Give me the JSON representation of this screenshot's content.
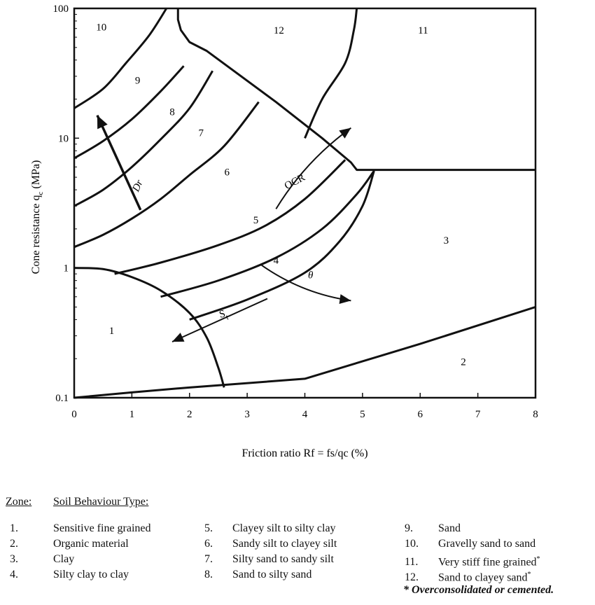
{
  "chart_data": {
    "type": "line",
    "xlabel": "Friction ratio Rf = fs/qc (%)",
    "ylabel_main": "Cone resistance q",
    "ylabel_sub": "c",
    "ylabel_unit": "(MPa)",
    "x_ticks": [
      "0",
      "1",
      "2",
      "3",
      "4",
      "5",
      "6",
      "7",
      "8"
    ],
    "y_ticks": [
      "0.1",
      "1",
      "10",
      "100"
    ],
    "xlim": [
      0,
      8
    ],
    "ylim": [
      0.1,
      100
    ],
    "y_scale": "log",
    "boundaries": [
      {
        "points": [
          [
            0,
            1.0
          ],
          [
            0.5,
            0.98
          ],
          [
            1.0,
            0.85
          ],
          [
            1.5,
            0.67
          ],
          [
            2.0,
            0.45
          ],
          [
            2.3,
            0.29
          ],
          [
            2.5,
            0.17
          ],
          [
            2.6,
            0.12
          ]
        ]
      },
      {
        "points": [
          [
            0,
            0.1
          ],
          [
            1.0,
            0.11
          ],
          [
            2.0,
            0.12
          ],
          [
            4.0,
            0.14
          ],
          [
            6.0,
            0.26
          ],
          [
            8.0,
            0.5
          ]
        ]
      },
      {
        "points": [
          [
            0.7,
            0.9
          ],
          [
            1.5,
            1.1
          ],
          [
            2.5,
            1.5
          ],
          [
            3.3,
            2.1
          ],
          [
            4.0,
            3.4
          ],
          [
            4.7,
            6.8
          ]
        ]
      },
      {
        "points": [
          [
            1.5,
            0.6
          ],
          [
            2.5,
            0.8
          ],
          [
            3.5,
            1.2
          ],
          [
            4.3,
            2.0
          ],
          [
            4.9,
            3.7
          ],
          [
            5.2,
            5.6
          ]
        ]
      },
      {
        "points": [
          [
            2.0,
            0.4
          ],
          [
            3.0,
            0.57
          ],
          [
            4.0,
            0.92
          ],
          [
            4.6,
            1.6
          ],
          [
            5.0,
            3.0
          ],
          [
            5.2,
            5.6
          ]
        ]
      },
      {
        "points": [
          [
            0,
            1.45
          ],
          [
            0.5,
            1.8
          ],
          [
            1.0,
            2.4
          ],
          [
            1.5,
            3.4
          ],
          [
            2.0,
            5.2
          ],
          [
            2.6,
            8.7
          ],
          [
            3.2,
            19
          ]
        ]
      },
      {
        "points": [
          [
            0,
            3.0
          ],
          [
            0.5,
            4.0
          ],
          [
            1.0,
            6.0
          ],
          [
            1.5,
            9.8
          ],
          [
            2.0,
            17
          ],
          [
            2.4,
            33
          ]
        ]
      },
      {
        "points": [
          [
            0,
            7.0
          ],
          [
            0.5,
            9.5
          ],
          [
            1.0,
            14
          ],
          [
            1.5,
            23
          ],
          [
            1.9,
            36
          ]
        ]
      },
      {
        "points": [
          [
            0,
            17
          ],
          [
            0.5,
            24
          ],
          [
            0.9,
            38
          ],
          [
            1.3,
            62
          ],
          [
            1.6,
            100
          ]
        ]
      },
      {
        "points": [
          [
            1.8,
            100
          ],
          [
            1.8,
            82
          ],
          [
            1.85,
            68
          ],
          [
            2.0,
            55
          ],
          [
            2.3,
            47
          ],
          [
            3.5,
            19
          ],
          [
            4.3,
            10
          ],
          [
            4.8,
            6.5
          ],
          [
            4.9,
            5.7
          ],
          [
            8.0,
            5.7
          ]
        ]
      },
      {
        "points": [
          [
            4.0,
            10
          ],
          [
            4.3,
            20
          ],
          [
            4.7,
            38
          ],
          [
            4.85,
            68
          ],
          [
            4.9,
            100
          ]
        ]
      }
    ],
    "zones": [
      {
        "label": "1",
        "x": 0.65,
        "y": 0.33
      },
      {
        "label": "2",
        "x": 6.75,
        "y": 0.19
      },
      {
        "label": "3",
        "x": 6.45,
        "y": 1.64
      },
      {
        "label": "4",
        "x": 3.5,
        "y": 1.15
      },
      {
        "label": "5",
        "x": 3.15,
        "y": 2.35
      },
      {
        "label": "6",
        "x": 2.65,
        "y": 5.5
      },
      {
        "label": "7",
        "x": 2.2,
        "y": 11
      },
      {
        "label": "8",
        "x": 1.7,
        "y": 16
      },
      {
        "label": "9",
        "x": 1.1,
        "y": 28
      },
      {
        "label": "10",
        "x": 0.47,
        "y": 72
      },
      {
        "label": "11",
        "x": 6.05,
        "y": 68
      },
      {
        "label": "12",
        "x": 3.55,
        "y": 68
      }
    ],
    "annotations": [
      {
        "label": "Dr",
        "x": 1.15,
        "y": 4.2,
        "rotate": -65,
        "italic": true
      },
      {
        "label": "OCR",
        "x": 3.85,
        "y": 4.4,
        "rotate": -28,
        "italic": false
      },
      {
        "label": "θ",
        "x": 4.1,
        "y": 0.83,
        "rotate": 0,
        "italic": true
      },
      {
        "label": "S",
        "label_sub": "t",
        "x": 2.6,
        "y": 0.42,
        "rotate": -15,
        "italic": false
      }
    ],
    "arrows": [
      {
        "name": "dr",
        "from": [
          1.15,
          2.8
        ],
        "to": [
          0.4,
          15
        ],
        "curve": 0
      },
      {
        "name": "ocr",
        "from": [
          3.5,
          2.85
        ],
        "to": [
          4.8,
          12
        ],
        "curve": -0.1
      },
      {
        "name": "theta",
        "from": [
          3.25,
          1.05
        ],
        "to": [
          4.8,
          0.56
        ],
        "curve": 0.12
      },
      {
        "name": "st",
        "from": [
          3.35,
          0.58
        ],
        "to": [
          1.7,
          0.27
        ],
        "curve": 0
      }
    ]
  },
  "legend": {
    "zone_header": "Zone:",
    "type_header": "Soil Behaviour Type:",
    "items": [
      {
        "num": "1.",
        "text": "Sensitive fine grained",
        "sup": ""
      },
      {
        "num": "2.",
        "text": "Organic material",
        "sup": ""
      },
      {
        "num": "3.",
        "text": "Clay",
        "sup": ""
      },
      {
        "num": "4.",
        "text": "Silty clay to clay",
        "sup": ""
      },
      {
        "num": "5.",
        "text": "Clayey silt to silty clay",
        "sup": ""
      },
      {
        "num": "6.",
        "text": "Sandy silt to clayey silt",
        "sup": ""
      },
      {
        "num": "7.",
        "text": "Silty sand to sandy silt",
        "sup": ""
      },
      {
        "num": "8.",
        "text": "Sand to silty sand",
        "sup": ""
      },
      {
        "num": "9.",
        "text": "Sand",
        "sup": ""
      },
      {
        "num": "10.",
        "text": "Gravelly sand to sand",
        "sup": ""
      },
      {
        "num": "11.",
        "text": "Very stiff fine grained",
        "sup": "*"
      },
      {
        "num": "12.",
        "text": "Sand to clayey sand",
        "sup": "*"
      }
    ],
    "footnote": "* Overconsolidated or cemented."
  }
}
